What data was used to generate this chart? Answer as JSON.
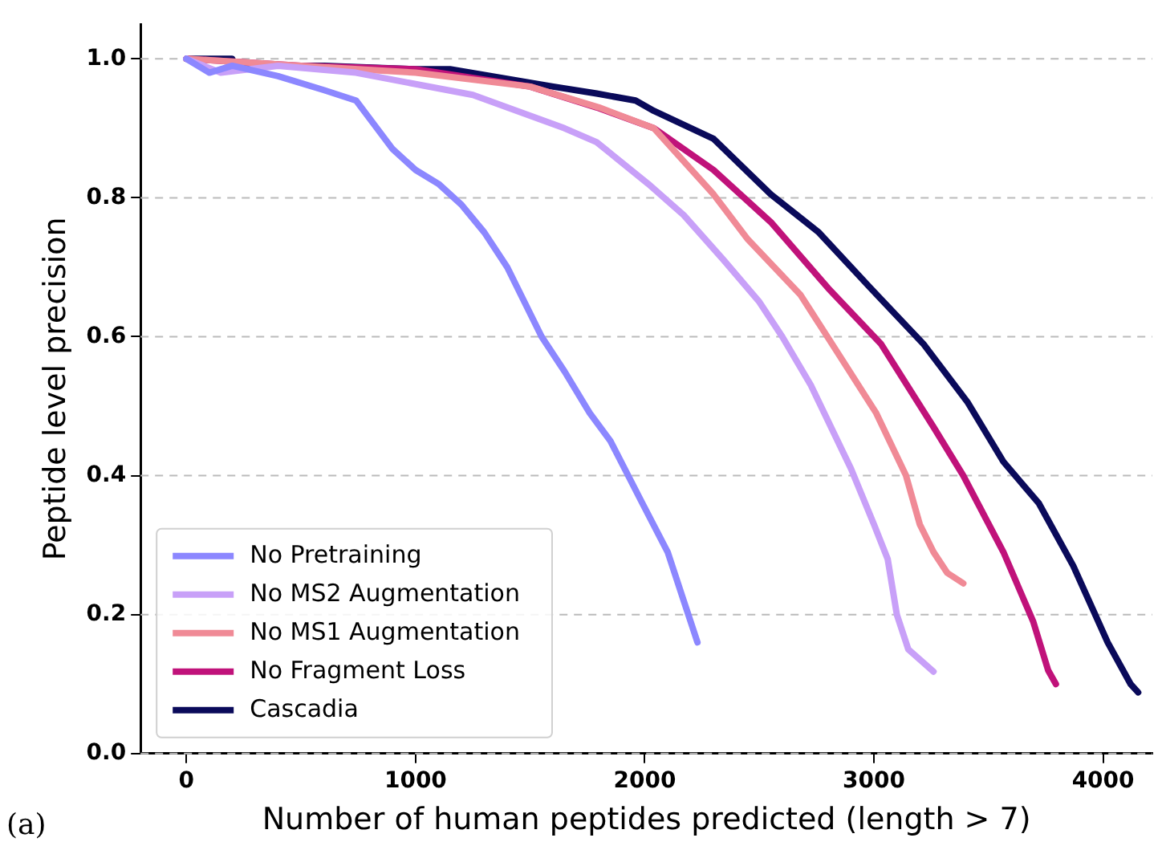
{
  "chart_data": {
    "type": "line",
    "xlabel": "Number of human peptides predicted (length > 7)",
    "ylabel": "Peptide level precision",
    "xlim": [
      -200,
      4215
    ],
    "xticks": [
      0,
      1000,
      2000,
      3000,
      4000
    ],
    "ylim": [
      0,
      1.05
    ],
    "yticks": [
      {
        "value": 0,
        "label": "0.0"
      },
      0.2,
      0.4,
      0.6,
      0.8,
      {
        "value": 1,
        "label": "1.0"
      }
    ],
    "grid": "y",
    "legend": "bottom left",
    "marker": "none",
    "line_style": "solid",
    "annotations": [
      "(a)"
    ],
    "series": [
      {
        "name": "No Pretraining",
        "color": "#8c87ff",
        "x": [
          0,
          100,
          200,
          400,
          600,
          740,
          900,
          1000,
          1100,
          1200,
          1300,
          1400,
          1550,
          1650,
          1760,
          1850,
          1990,
          2100,
          2170,
          2230
        ],
        "values": [
          1.0,
          0.98,
          0.99,
          0.975,
          0.955,
          0.94,
          0.87,
          0.84,
          0.82,
          0.79,
          0.75,
          0.7,
          0.6,
          0.55,
          0.49,
          0.45,
          0.36,
          0.29,
          0.22,
          0.16
        ]
      },
      {
        "name": "No MS2 Augmentation",
        "color": "#c8a0f8",
        "x": [
          0,
          150,
          400,
          740,
          1250,
          1650,
          1790,
          2015,
          2170,
          2345,
          2500,
          2600,
          2725,
          2900,
          3000,
          3060,
          3100,
          3150,
          3260
        ],
        "values": [
          1.0,
          0.98,
          0.99,
          0.98,
          0.948,
          0.9,
          0.88,
          0.82,
          0.775,
          0.71,
          0.65,
          0.6,
          0.53,
          0.41,
          0.33,
          0.28,
          0.2,
          0.15,
          0.118
        ]
      },
      {
        "name": "No MS1 Augmentation",
        "color": "#f08a96",
        "x": [
          0,
          500,
          1000,
          1500,
          1800,
          2040,
          2300,
          2450,
          2680,
          2855,
          3010,
          3140,
          3200,
          3260,
          3320,
          3390
        ],
        "values": [
          1.0,
          0.99,
          0.98,
          0.96,
          0.93,
          0.9,
          0.805,
          0.74,
          0.66,
          0.57,
          0.49,
          0.4,
          0.33,
          0.29,
          0.26,
          0.245
        ]
      },
      {
        "name": "No Fragment Loss",
        "color": "#c0127a",
        "x": [
          0,
          500,
          1000,
          1500,
          1790,
          2040,
          2300,
          2550,
          2800,
          3030,
          3260,
          3390,
          3565,
          3695,
          3760,
          3794
        ],
        "values": [
          1.0,
          0.99,
          0.985,
          0.96,
          0.93,
          0.9,
          0.84,
          0.765,
          0.67,
          0.59,
          0.47,
          0.4,
          0.29,
          0.19,
          0.12,
          0.1
        ]
      },
      {
        "name": "Cascadia",
        "color": "#0a0a5a",
        "x": [
          0,
          200,
          210,
          600,
          1000,
          1150,
          1600,
          1790,
          1960,
          2040,
          2300,
          2550,
          2760,
          2985,
          3215,
          3410,
          3565,
          3720,
          3870,
          4020,
          4120,
          4153
        ],
        "values": [
          1.0,
          1.0,
          0.99,
          0.99,
          0.985,
          0.985,
          0.96,
          0.95,
          0.94,
          0.925,
          0.885,
          0.805,
          0.75,
          0.67,
          0.59,
          0.505,
          0.42,
          0.36,
          0.27,
          0.16,
          0.1,
          0.088
        ]
      }
    ]
  }
}
